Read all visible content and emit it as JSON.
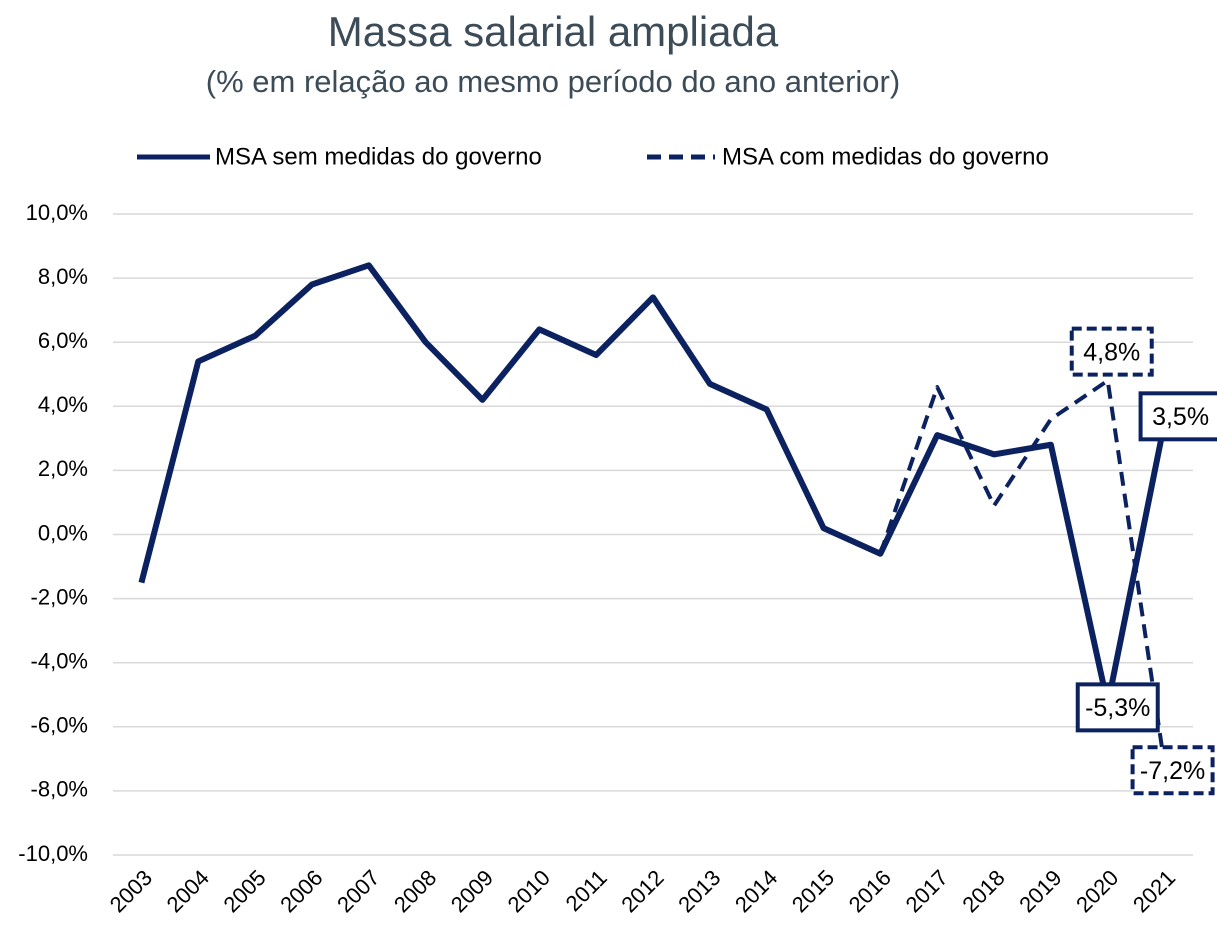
{
  "chart_data": {
    "type": "line",
    "title": "Massa salarial ampliada",
    "subtitle": "(% em relação ao mesmo período do ano anterior)",
    "categories": [
      "2003",
      "2004",
      "2005",
      "2006",
      "2007",
      "2008",
      "2009",
      "2010",
      "2011",
      "2012",
      "2013",
      "2014",
      "2015",
      "2016",
      "2017",
      "2018",
      "2019",
      "2020",
      "2021"
    ],
    "series": [
      {
        "name": "MSA sem medidas do governo",
        "color": "#0c2260",
        "dash": false,
        "values": [
          -1.5,
          5.4,
          6.2,
          7.8,
          8.4,
          6.0,
          4.2,
          6.4,
          5.6,
          7.4,
          4.7,
          3.9,
          0.2,
          -0.6,
          3.1,
          2.5,
          2.8,
          -5.3,
          3.5
        ],
        "value_labels": [
          null,
          null,
          null,
          null,
          null,
          null,
          null,
          null,
          null,
          null,
          null,
          null,
          null,
          null,
          null,
          null,
          null,
          "-5,3%",
          "3,5%"
        ]
      },
      {
        "name": "MSA com medidas do governo",
        "color": "#0c2260",
        "dash": true,
        "values": [
          null,
          null,
          null,
          null,
          null,
          null,
          null,
          null,
          null,
          null,
          null,
          null,
          null,
          -0.6,
          4.6,
          0.9,
          3.6,
          4.8,
          -7.2
        ],
        "value_labels": [
          null,
          null,
          null,
          null,
          null,
          null,
          null,
          null,
          null,
          null,
          null,
          null,
          null,
          null,
          null,
          null,
          null,
          "4,8%",
          "-7,2%"
        ]
      }
    ],
    "ylim": [
      -10,
      10
    ],
    "yticks": [
      {
        "value": -10,
        "label": "-10,0%"
      },
      {
        "value": -8,
        "label": "-8,0%"
      },
      {
        "value": -6,
        "label": "-6,0%"
      },
      {
        "value": -4,
        "label": "-4,0%"
      },
      {
        "value": -2,
        "label": "-2,0%"
      },
      {
        "value": 0,
        "label": "0,0%"
      },
      {
        "value": 2,
        "label": "2,0%"
      },
      {
        "value": 4,
        "label": "4,0%"
      },
      {
        "value": 6,
        "label": "6,0%"
      },
      {
        "value": 8,
        "label": "8,0%"
      },
      {
        "value": 10,
        "label": "10,0%"
      }
    ],
    "grid": true,
    "legend": "top"
  }
}
